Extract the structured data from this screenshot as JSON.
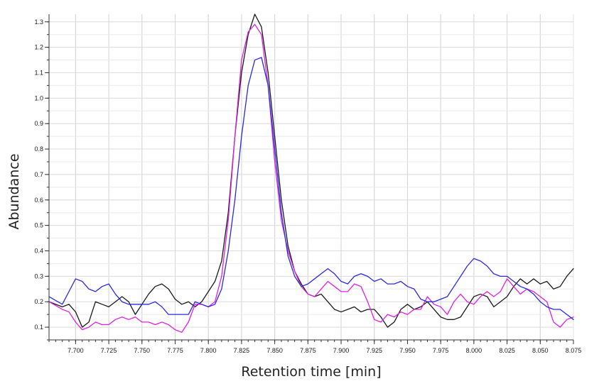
{
  "chart_data": {
    "type": "line",
    "title": "",
    "xlabel": "Retention time [min]",
    "ylabel": "Abundance",
    "xlim": [
      7.68,
      8.075
    ],
    "ylim": [
      0.05,
      1.33
    ],
    "grid": true,
    "x_ticks": [
      7.7,
      7.725,
      7.75,
      7.775,
      7.8,
      7.825,
      7.85,
      7.875,
      7.9,
      7.925,
      7.95,
      7.975,
      8.0,
      8.025,
      8.05,
      8.075
    ],
    "x_tick_labels": [
      "7.700",
      "7.725",
      "7.750",
      "7.775",
      "7.800",
      "7.825",
      "7.850",
      "7.875",
      "7.900",
      "7.925",
      "7.950",
      "7.975",
      "8.000",
      "8.025",
      "8.050",
      "8.075"
    ],
    "y_ticks": [
      0.1,
      0.2,
      0.3,
      0.4,
      0.5,
      0.6,
      0.7,
      0.8,
      0.9,
      1.0,
      1.1,
      1.2,
      1.3
    ],
    "y_tick_labels": [
      "0.1",
      "0.2",
      "0.3",
      "0.4",
      "0.5",
      "0.6",
      "0.7",
      "0.8",
      "0.9",
      "1.0",
      "1.1",
      "1.2",
      "1.3"
    ],
    "series": [
      {
        "color": "#1a1a1a",
        "x": [
          7.68,
          7.69,
          7.695,
          7.7,
          7.705,
          7.71,
          7.715,
          7.72,
          7.725,
          7.73,
          7.735,
          7.74,
          7.745,
          7.75,
          7.755,
          7.76,
          7.765,
          7.77,
          7.775,
          7.78,
          7.785,
          7.79,
          7.795,
          7.8,
          7.805,
          7.81,
          7.815,
          7.82,
          7.825,
          7.83,
          7.835,
          7.84,
          7.845,
          7.85,
          7.855,
          7.86,
          7.865,
          7.87,
          7.875,
          7.88,
          7.885,
          7.89,
          7.895,
          7.9,
          7.905,
          7.91,
          7.915,
          7.92,
          7.925,
          7.93,
          7.935,
          7.94,
          7.945,
          7.95,
          7.955,
          7.96,
          7.965,
          7.97,
          7.975,
          7.98,
          7.985,
          7.99,
          7.995,
          8.0,
          8.005,
          8.01,
          8.015,
          8.02,
          8.025,
          8.03,
          8.035,
          8.04,
          8.045,
          8.05,
          8.055,
          8.06,
          8.065,
          8.07,
          8.075
        ],
        "y": [
          0.2,
          0.18,
          0.19,
          0.16,
          0.1,
          0.12,
          0.2,
          0.19,
          0.18,
          0.2,
          0.22,
          0.2,
          0.15,
          0.19,
          0.23,
          0.26,
          0.27,
          0.25,
          0.21,
          0.19,
          0.2,
          0.18,
          0.2,
          0.24,
          0.28,
          0.36,
          0.55,
          0.85,
          1.1,
          1.25,
          1.33,
          1.28,
          1.1,
          0.85,
          0.6,
          0.42,
          0.32,
          0.27,
          0.23,
          0.22,
          0.23,
          0.2,
          0.17,
          0.16,
          0.17,
          0.18,
          0.16,
          0.17,
          0.17,
          0.14,
          0.1,
          0.12,
          0.17,
          0.19,
          0.17,
          0.18,
          0.2,
          0.17,
          0.14,
          0.13,
          0.13,
          0.14,
          0.18,
          0.22,
          0.23,
          0.22,
          0.18,
          0.2,
          0.22,
          0.26,
          0.29,
          0.27,
          0.29,
          0.27,
          0.28,
          0.25,
          0.26,
          0.3,
          0.33
        ]
      },
      {
        "color": "#e020e0",
        "x": [
          7.68,
          7.69,
          7.695,
          7.7,
          7.705,
          7.71,
          7.715,
          7.72,
          7.725,
          7.73,
          7.735,
          7.74,
          7.745,
          7.75,
          7.755,
          7.76,
          7.765,
          7.77,
          7.775,
          7.78,
          7.785,
          7.79,
          7.795,
          7.8,
          7.805,
          7.81,
          7.815,
          7.82,
          7.825,
          7.83,
          7.835,
          7.84,
          7.845,
          7.85,
          7.855,
          7.86,
          7.865,
          7.87,
          7.875,
          7.88,
          7.885,
          7.89,
          7.895,
          7.9,
          7.905,
          7.91,
          7.915,
          7.92,
          7.925,
          7.93,
          7.935,
          7.94,
          7.945,
          7.95,
          7.955,
          7.96,
          7.965,
          7.97,
          7.975,
          7.98,
          7.985,
          7.99,
          7.995,
          8.0,
          8.005,
          8.01,
          8.015,
          8.02,
          8.025,
          8.03,
          8.035,
          8.04,
          8.045,
          8.05,
          8.055,
          8.06,
          8.065,
          8.07,
          8.075
        ],
        "y": [
          0.2,
          0.17,
          0.16,
          0.12,
          0.09,
          0.1,
          0.12,
          0.11,
          0.11,
          0.13,
          0.14,
          0.13,
          0.14,
          0.12,
          0.12,
          0.11,
          0.12,
          0.11,
          0.09,
          0.08,
          0.12,
          0.19,
          0.19,
          0.18,
          0.2,
          0.3,
          0.52,
          0.85,
          1.15,
          1.26,
          1.29,
          1.25,
          1.05,
          0.75,
          0.52,
          0.4,
          0.32,
          0.26,
          0.23,
          0.22,
          0.25,
          0.28,
          0.26,
          0.24,
          0.24,
          0.27,
          0.26,
          0.2,
          0.13,
          0.12,
          0.15,
          0.14,
          0.16,
          0.15,
          0.17,
          0.17,
          0.22,
          0.19,
          0.18,
          0.15,
          0.2,
          0.23,
          0.2,
          0.19,
          0.22,
          0.24,
          0.22,
          0.24,
          0.29,
          0.26,
          0.23,
          0.25,
          0.24,
          0.22,
          0.2,
          0.12,
          0.1,
          0.13,
          0.14
        ]
      },
      {
        "color": "#2a2ae0",
        "x": [
          7.68,
          7.69,
          7.695,
          7.7,
          7.705,
          7.71,
          7.715,
          7.72,
          7.725,
          7.73,
          7.735,
          7.74,
          7.745,
          7.75,
          7.755,
          7.76,
          7.765,
          7.77,
          7.775,
          7.78,
          7.785,
          7.79,
          7.795,
          7.8,
          7.805,
          7.81,
          7.815,
          7.82,
          7.825,
          7.83,
          7.835,
          7.84,
          7.845,
          7.85,
          7.855,
          7.86,
          7.865,
          7.87,
          7.875,
          7.88,
          7.885,
          7.89,
          7.895,
          7.9,
          7.905,
          7.91,
          7.915,
          7.92,
          7.925,
          7.93,
          7.935,
          7.94,
          7.945,
          7.95,
          7.955,
          7.96,
          7.965,
          7.97,
          7.975,
          7.98,
          7.985,
          7.99,
          7.995,
          8.0,
          8.005,
          8.01,
          8.015,
          8.02,
          8.025,
          8.03,
          8.035,
          8.04,
          8.045,
          8.05,
          8.055,
          8.06,
          8.065,
          8.07,
          8.075
        ],
        "y": [
          0.22,
          0.19,
          0.24,
          0.29,
          0.28,
          0.25,
          0.24,
          0.26,
          0.27,
          0.23,
          0.2,
          0.19,
          0.19,
          0.19,
          0.19,
          0.2,
          0.18,
          0.15,
          0.15,
          0.15,
          0.15,
          0.2,
          0.19,
          0.18,
          0.19,
          0.25,
          0.4,
          0.6,
          0.85,
          1.05,
          1.15,
          1.16,
          1.05,
          0.8,
          0.55,
          0.38,
          0.3,
          0.26,
          0.27,
          0.29,
          0.31,
          0.33,
          0.31,
          0.28,
          0.27,
          0.3,
          0.31,
          0.3,
          0.28,
          0.29,
          0.27,
          0.27,
          0.28,
          0.26,
          0.25,
          0.21,
          0.2,
          0.2,
          0.21,
          0.22,
          0.26,
          0.3,
          0.34,
          0.37,
          0.36,
          0.34,
          0.31,
          0.3,
          0.3,
          0.28,
          0.26,
          0.25,
          0.23,
          0.2,
          0.18,
          0.17,
          0.17,
          0.15,
          0.13
        ]
      }
    ]
  }
}
